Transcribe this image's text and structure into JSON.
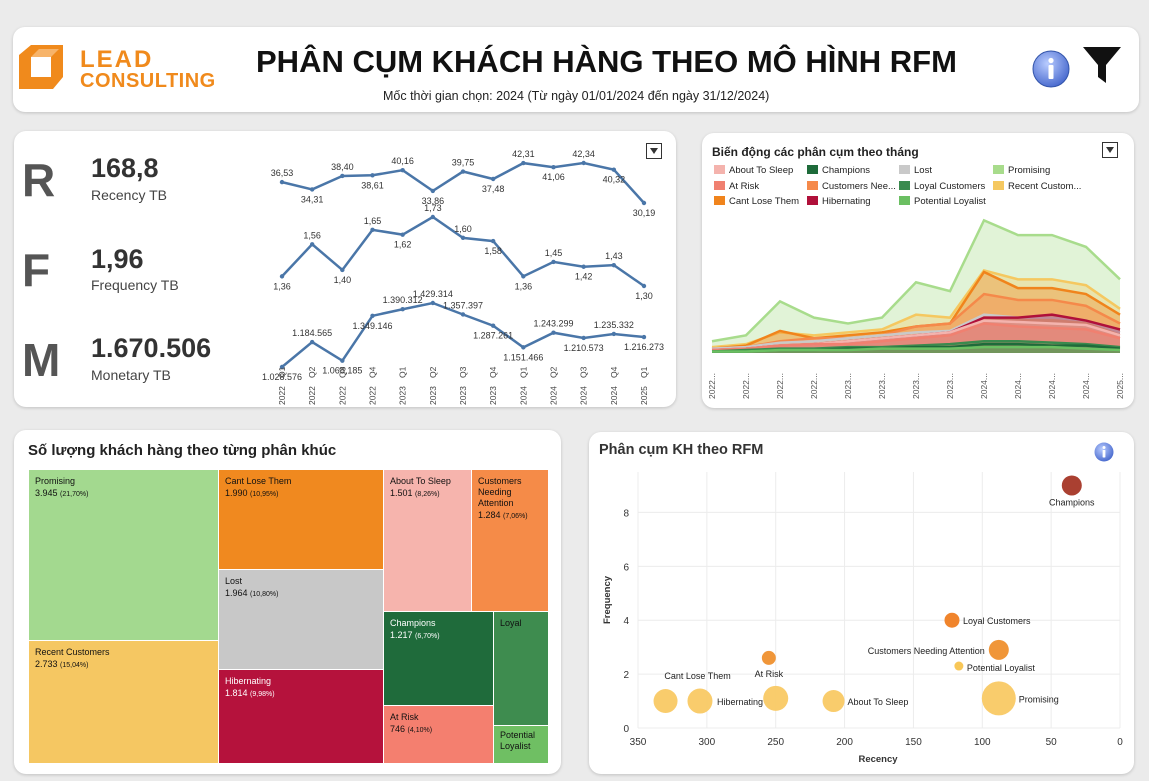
{
  "header": {
    "logo_line1": "LEAD",
    "logo_line2": "CONSULTING",
    "title": "PHÂN CỤM KHÁCH HÀNG THEO MÔ HÌNH RFM",
    "subtitle_prefix": "Mốc thời gian chọn:",
    "subtitle_year": "2024",
    "subtitle_range": "(Từ ngày 01/01/2024 đến ngày 31/12/2024)",
    "info_icon": "info-icon",
    "filter_icon": "filter-icon",
    "accent": "#f08a1c"
  },
  "kpis": [
    {
      "letter": "R",
      "value": "168,8",
      "label": "Recency TB"
    },
    {
      "letter": "F",
      "value": "1,96",
      "label": "Frequency TB"
    },
    {
      "letter": "M",
      "value": "1.670.506",
      "label": "Monetary TB"
    }
  ],
  "chart_data": [
    {
      "type": "line",
      "x": [
        "2022 Q1",
        "2022 Q2",
        "2022 Q3",
        "2022 Q4",
        "2023 Q1",
        "2023 Q2",
        "2023 Q3",
        "2023 Q4",
        "2024 Q1",
        "2024 Q2",
        "2024 Q3",
        "2024 Q4",
        "2025 Q1"
      ],
      "series": [
        {
          "key": "recency",
          "values": [
            36.53,
            34.31,
            38.4,
            38.61,
            40.16,
            33.86,
            39.75,
            37.48,
            42.31,
            41.06,
            42.34,
            40.32,
            30.19
          ],
          "labels": [
            "36,53",
            "34,31",
            "38,40",
            "38,61",
            "40,16",
            "33,86",
            "39,75",
            "37,48",
            "42,31",
            "41,06",
            "42,34",
            "40,32",
            "30,19"
          ]
        },
        {
          "key": "frequency",
          "values": [
            1.36,
            1.56,
            1.4,
            1.65,
            1.62,
            1.73,
            1.6,
            1.58,
            1.36,
            1.45,
            1.42,
            1.43,
            1.3
          ],
          "labels": [
            "1,36",
            "1,56",
            "1,40",
            "1,65",
            "1,62",
            "1,73",
            "1,60",
            "1,58",
            "1,36",
            "1,45",
            "1,42",
            "1,43",
            "1,30"
          ]
        },
        {
          "key": "monetary",
          "values": [
            1028576,
            1184565,
            1068185,
            1349146,
            1390312,
            1429314,
            1357397,
            1287261,
            1151466,
            1243299,
            1210573,
            1235332,
            1216273
          ],
          "labels": [
            "1.028.576",
            "1.184.565",
            "1.068.185",
            "1.349.146",
            "1.390.312",
            "1.429.314",
            "1.357.397",
            "1.287.261",
            "1.151.466",
            "1.243.299",
            "1.210.573",
            "1.235.332",
            "1.216.273"
          ]
        }
      ],
      "color": "#4a76a8"
    },
    {
      "type": "area",
      "title": "Biến động các phân cụm theo tháng",
      "x": [
        "2022...",
        "2022...",
        "2022...",
        "2022...",
        "2023...",
        "2023...",
        "2023...",
        "2023...",
        "2024...",
        "2024...",
        "2024...",
        "2024...",
        "2025..."
      ],
      "series": [
        {
          "name": "About To Sleep",
          "color": "#f4b3ad",
          "values": [
            2,
            3,
            5,
            6,
            8,
            10,
            12,
            14,
            22,
            21,
            20,
            19,
            12
          ]
        },
        {
          "name": "Champions",
          "color": "#1e6b3a",
          "values": [
            1,
            1,
            2,
            2,
            3,
            3,
            4,
            4,
            6,
            6,
            5,
            5,
            3
          ]
        },
        {
          "name": "Lost",
          "color": "#c9c9c9",
          "values": [
            3,
            4,
            7,
            8,
            10,
            12,
            14,
            15,
            26,
            24,
            24,
            22,
            14
          ]
        },
        {
          "name": "Promising",
          "color": "#a8dc8c",
          "values": [
            8,
            12,
            35,
            24,
            20,
            24,
            48,
            42,
            90,
            80,
            80,
            72,
            50
          ]
        },
        {
          "name": "At Risk",
          "color": "#f08070",
          "values": [
            2,
            3,
            5,
            6,
            6,
            8,
            10,
            12,
            20,
            18,
            17,
            16,
            10
          ]
        },
        {
          "name": "Customers Nee...",
          "color": "#f5894a",
          "values": [
            3,
            4,
            8,
            10,
            10,
            12,
            18,
            20,
            40,
            36,
            36,
            32,
            20
          ]
        },
        {
          "name": "Loyal Customers",
          "color": "#3a8a4e",
          "values": [
            1,
            2,
            3,
            3,
            4,
            4,
            5,
            6,
            8,
            8,
            7,
            6,
            4
          ]
        },
        {
          "name": "Recent Custom...",
          "color": "#f5c860",
          "values": [
            4,
            6,
            14,
            12,
            14,
            16,
            26,
            24,
            56,
            50,
            50,
            46,
            30
          ]
        },
        {
          "name": "Cant Lose Them",
          "color": "#f0841c",
          "values": [
            3,
            5,
            15,
            10,
            12,
            14,
            18,
            20,
            55,
            44,
            44,
            40,
            26
          ]
        },
        {
          "name": "Hibernating",
          "color": "#b0103a",
          "values": [
            2,
            3,
            5,
            6,
            8,
            10,
            12,
            14,
            24,
            24,
            26,
            22,
            16
          ]
        },
        {
          "name": "Potential Loyalist",
          "color": "#6bbf62",
          "values": [
            1,
            1,
            2,
            2,
            2,
            3,
            3,
            3,
            4,
            4,
            4,
            3,
            2
          ]
        }
      ]
    },
    {
      "type": "heatmap",
      "title": "Số lượng khách hàng theo từng phân khúc",
      "cells": [
        {
          "name": "Promising",
          "value": "3.945",
          "pct": "(21,70%)",
          "color": "#a3d98f"
        },
        {
          "name": "Recent Customers",
          "value": "2.733",
          "pct": "(15,04%)",
          "color": "#f5c762"
        },
        {
          "name": "Cant Lose Them",
          "value": "1.990",
          "pct": "(10,95%)",
          "color": "#f0891f"
        },
        {
          "name": "Lost",
          "value": "1.964",
          "pct": "(10,80%)",
          "color": "#c8c8c8"
        },
        {
          "name": "Hibernating",
          "value": "1.814",
          "pct": "(9,98%)",
          "color": "#b5123c"
        },
        {
          "name": "About To Sleep",
          "value": "1.501",
          "pct": "(8,26%)",
          "color": "#f6b4ad"
        },
        {
          "name": "Customers Needing Attention",
          "value": "1.284",
          "pct": "(7,06%)",
          "color": "#f58b48"
        },
        {
          "name": "Champions",
          "value": "1.217",
          "pct": "(6,70%)",
          "color": "#1f6b3b"
        },
        {
          "name": "At Risk",
          "value": "746",
          "pct": "(4,10%)",
          "color": "#f47f6f"
        },
        {
          "name": "Loyal",
          "value": "",
          "pct": "",
          "color": "#3e8c4f"
        },
        {
          "name": "Potential Loyalist",
          "value": "",
          "pct": "",
          "color": "#6fbf63"
        }
      ]
    },
    {
      "type": "scatter",
      "title": "Phân cụm KH theo RFM",
      "xlabel": "Recency",
      "ylabel": "Frequency",
      "xlim": [
        350,
        0
      ],
      "ylim": [
        0,
        9.5
      ],
      "xticks": [
        350,
        300,
        250,
        200,
        150,
        100,
        50,
        0
      ],
      "yticks": [
        0,
        2,
        4,
        6,
        8
      ],
      "points": [
        {
          "name": "Champions",
          "x": 35,
          "y": 9.0,
          "size": 20,
          "color": "#a3301f"
        },
        {
          "name": "Loyal Customers",
          "x": 122,
          "y": 4.0,
          "size": 15,
          "color": "#ef7a1a"
        },
        {
          "name": "Customers Needing Attention",
          "x": 88,
          "y": 2.9,
          "size": 20,
          "color": "#ef8d28"
        },
        {
          "name": "Potential Loyalist",
          "x": 117,
          "y": 2.3,
          "size": 9,
          "color": "#f7c24a"
        },
        {
          "name": "At Risk",
          "x": 255,
          "y": 2.6,
          "size": 14,
          "color": "#ef8d28"
        },
        {
          "name": "Promising",
          "x": 88,
          "y": 1.1,
          "size": 34,
          "color": "#f8c860"
        },
        {
          "name": "Cant Lose Them",
          "x": 330,
          "y": 1.0,
          "size": 24,
          "color": "#f8c860"
        },
        {
          "name": "Hibernating",
          "x": 305,
          "y": 1.0,
          "size": 25,
          "color": "#f8c860"
        },
        {
          "name": "About To Sleep",
          "x": 208,
          "y": 1.0,
          "size": 22,
          "color": "#f8c860"
        },
        {
          "name": "",
          "x": 250,
          "y": 1.1,
          "size": 25,
          "color": "#f8c860"
        }
      ]
    }
  ]
}
